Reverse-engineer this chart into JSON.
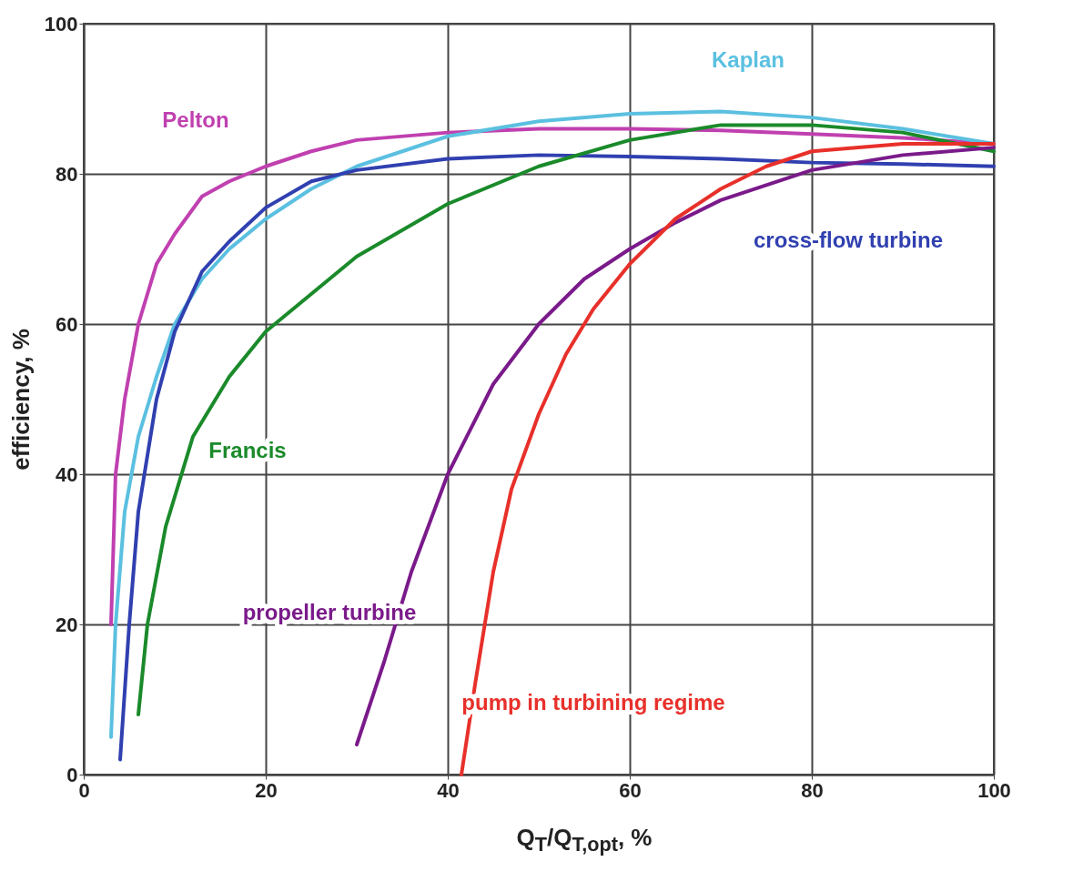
{
  "chart_data": {
    "type": "line",
    "xlabel": "Q$_{T}$/Q$_{T,opt}$, %",
    "ylabel": "efficiency, %",
    "xlim": [
      0,
      100
    ],
    "ylim": [
      0,
      100
    ],
    "xticks": [
      0,
      20,
      40,
      60,
      80,
      100
    ],
    "yticks": [
      0,
      20,
      40,
      60,
      80,
      100
    ],
    "grid": true,
    "legend": false,
    "marker": "none",
    "line_style": "solid",
    "series": [
      {
        "name": "Pelton",
        "color": "#c040b0",
        "x": [
          3,
          3.5,
          4.5,
          6,
          8,
          10,
          13,
          16,
          20,
          25,
          30,
          40,
          50,
          60,
          70,
          80,
          90,
          100
        ],
        "values": [
          20,
          40,
          50,
          60,
          68,
          72,
          77,
          79,
          81,
          83,
          84.5,
          85.5,
          86,
          86,
          85.8,
          85.3,
          84.8,
          84
        ]
      },
      {
        "name": "Kaplan",
        "color": "#5bc0e0",
        "x": [
          3,
          3.5,
          4.5,
          6,
          8,
          10,
          13,
          16,
          20,
          25,
          30,
          40,
          50,
          60,
          70,
          80,
          90,
          100
        ],
        "values": [
          5,
          20,
          35,
          45,
          53,
          60,
          66,
          70,
          74,
          78,
          81,
          85,
          87,
          88,
          88.3,
          87.5,
          86,
          84
        ]
      },
      {
        "name": "cross-flow turbine",
        "color": "#3040b0",
        "x": [
          4,
          5,
          6,
          8,
          10,
          13,
          16,
          20,
          25,
          30,
          40,
          50,
          60,
          70,
          80,
          90,
          100
        ],
        "values": [
          2,
          20,
          35,
          50,
          59,
          67,
          71,
          75.5,
          79,
          80.5,
          82,
          82.5,
          82.3,
          82,
          81.5,
          81.3,
          81
        ]
      },
      {
        "name": "Francis",
        "color": "#1a8a2a",
        "x": [
          6,
          7,
          9,
          12,
          16,
          20,
          25,
          30,
          40,
          50,
          60,
          70,
          80,
          90,
          100
        ],
        "values": [
          8,
          20,
          33,
          45,
          53,
          59,
          64,
          69,
          76,
          81,
          84.5,
          86.5,
          86.5,
          85.5,
          83
        ]
      },
      {
        "name": "propeller turbine",
        "color": "#7a1a8a",
        "x": [
          30,
          33,
          36,
          40,
          45,
          50,
          55,
          60,
          65,
          70,
          80,
          90,
          100
        ],
        "values": [
          4,
          15,
          27,
          40,
          52,
          60,
          66,
          70,
          73.5,
          76.5,
          80.5,
          82.5,
          83.5
        ]
      },
      {
        "name": "pump in turbining regime",
        "color": "#e8302a",
        "x": [
          41.5,
          43,
          45,
          47,
          50,
          53,
          56,
          60,
          65,
          70,
          75,
          80,
          90,
          100
        ],
        "values": [
          0,
          12,
          27,
          38,
          48,
          56,
          62,
          68,
          74,
          78,
          81,
          83,
          84,
          84
        ]
      }
    ]
  }
}
